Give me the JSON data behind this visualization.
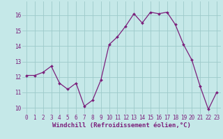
{
  "x": [
    0,
    1,
    2,
    3,
    4,
    5,
    6,
    7,
    8,
    9,
    10,
    11,
    12,
    13,
    14,
    15,
    16,
    17,
    18,
    19,
    20,
    21,
    22,
    23
  ],
  "y": [
    12.1,
    12.1,
    12.3,
    12.7,
    11.6,
    11.2,
    11.6,
    10.1,
    10.5,
    11.8,
    14.1,
    14.6,
    15.3,
    16.1,
    15.5,
    16.2,
    16.1,
    16.2,
    15.4,
    14.1,
    13.1,
    11.4,
    9.9,
    11.0
  ],
  "line_color": "#7B1F7B",
  "marker_color": "#7B1F7B",
  "bg_color": "#C5E8E8",
  "grid_color": "#9DCACA",
  "xlabel": "Windchill (Refroidissement éolien,°C)",
  "xlim": [
    -0.5,
    23.5
  ],
  "ylim": [
    9.6,
    16.9
  ],
  "yticks": [
    10,
    11,
    12,
    13,
    14,
    15,
    16
  ],
  "xticks": [
    0,
    1,
    2,
    3,
    4,
    5,
    6,
    7,
    8,
    9,
    10,
    11,
    12,
    13,
    14,
    15,
    16,
    17,
    18,
    19,
    20,
    21,
    22,
    23
  ],
  "tick_fontsize": 5.5,
  "xlabel_fontsize": 6.5,
  "marker_size": 2.0,
  "line_width": 0.9
}
